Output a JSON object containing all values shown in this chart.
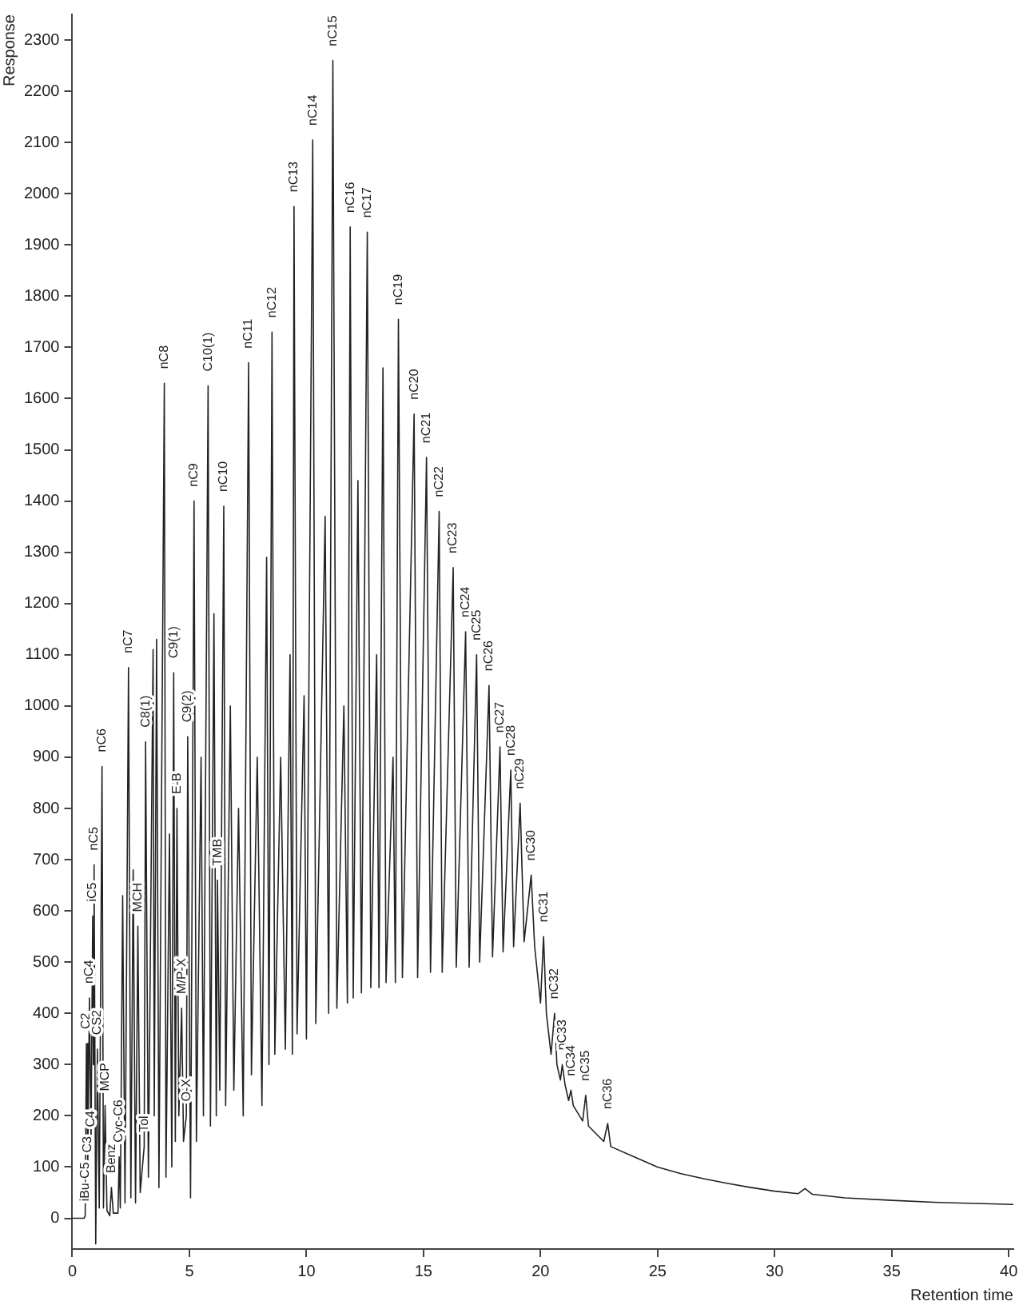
{
  "chart_data": {
    "type": "line",
    "xlabel": "Retention time",
    "ylabel": "Response",
    "color": "#222222",
    "marker": "none",
    "grid": false,
    "xlim": [
      0,
      40.2
    ],
    "ylim": [
      -60,
      2350
    ],
    "xticks": [
      0,
      5,
      10,
      15,
      20,
      25,
      30,
      35,
      40
    ],
    "yticks": [
      0,
      100,
      200,
      300,
      400,
      500,
      600,
      700,
      800,
      900,
      1000,
      1100,
      1200,
      1300,
      1400,
      1500,
      1600,
      1700,
      1800,
      1900,
      2000,
      2100,
      2200,
      2300
    ],
    "x": [
      0,
      0.5,
      0.55,
      0.6,
      0.66,
      0.73,
      0.8,
      0.87,
      0.9,
      0.93,
      1.0,
      1.07,
      1.15,
      1.27,
      1.33,
      1.4,
      1.48,
      1.6,
      1.67,
      1.75,
      1.95,
      2.0,
      2.05,
      2.15,
      2.25,
      2.4,
      2.5,
      2.6,
      2.7,
      2.8,
      2.9,
      3.07,
      3.13,
      3.25,
      3.45,
      3.5,
      3.6,
      3.7,
      3.93,
      4.0,
      4.15,
      4.25,
      4.33,
      4.4,
      4.47,
      4.55,
      4.67,
      4.75,
      4.87,
      4.93,
      5.05,
      5.2,
      5.3,
      5.5,
      5.6,
      5.8,
      5.9,
      6.05,
      6.15,
      6.2,
      6.3,
      6.47,
      6.55,
      6.75,
      6.9,
      7.1,
      7.3,
      7.53,
      7.65,
      7.9,
      8.1,
      8.3,
      8.4,
      8.53,
      8.65,
      8.9,
      9.1,
      9.3,
      9.4,
      9.47,
      9.6,
      9.9,
      10.0,
      10.27,
      10.4,
      10.8,
      10.95,
      11.13,
      11.3,
      11.6,
      11.75,
      11.87,
      12.0,
      12.2,
      12.35,
      12.6,
      12.75,
      13.0,
      13.1,
      13.27,
      13.4,
      13.7,
      13.8,
      13.93,
      14.1,
      14.6,
      14.75,
      15.13,
      15.3,
      15.67,
      15.8,
      16.27,
      16.4,
      16.8,
      16.95,
      17.27,
      17.4,
      17.8,
      17.95,
      18.27,
      18.4,
      18.73,
      18.85,
      19.13,
      19.3,
      19.6,
      19.75,
      20.0,
      20.13,
      20.25,
      20.45,
      20.6,
      20.7,
      20.85,
      20.93,
      21.05,
      21.2,
      21.3,
      21.4,
      21.8,
      21.93,
      22.05,
      22.7,
      22.87,
      23.0,
      24,
      25,
      26,
      27,
      28,
      29,
      30,
      31,
      31.3,
      31.6,
      33,
      35,
      37,
      40.2
    ],
    "values": [
      0,
      0,
      5,
      341,
      100,
      430,
      150,
      590,
      300,
      690,
      -50,
      330,
      20,
      882,
      20,
      220,
      15,
      5,
      60,
      10,
      10,
      120,
      20,
      630,
      30,
      1075,
      40,
      680,
      30,
      570,
      50,
      140,
      930,
      80,
      1110,
      200,
      1130,
      60,
      1630,
      80,
      750,
      100,
      1065,
      150,
      800,
      200,
      410,
      150,
      200,
      940,
      40,
      1400,
      150,
      900,
      200,
      1625,
      180,
      1180,
      200,
      660,
      250,
      1390,
      220,
      1000,
      250,
      800,
      200,
      1670,
      280,
      900,
      220,
      1290,
      300,
      1730,
      320,
      900,
      330,
      1100,
      320,
      1975,
      360,
      1020,
      350,
      2105,
      380,
      1370,
      400,
      2260,
      410,
      1000,
      420,
      1935,
      430,
      1440,
      440,
      1925,
      450,
      1100,
      450,
      1660,
      460,
      900,
      460,
      1755,
      470,
      1570,
      470,
      1485,
      480,
      1380,
      480,
      1270,
      490,
      1145,
      490,
      1100,
      500,
      1040,
      510,
      920,
      520,
      875,
      530,
      810,
      540,
      670,
      530,
      420,
      550,
      400,
      320,
      400,
      300,
      270,
      300,
      260,
      230,
      250,
      220,
      190,
      240,
      180,
      150,
      185,
      140,
      120,
      100,
      87,
      77,
      68,
      60,
      53,
      48,
      58,
      47,
      40,
      35,
      31,
      27
    ],
    "annotations": [
      {
        "text": "C2",
        "x": 0.6,
        "y": 341
      },
      {
        "text": "nC4",
        "x": 0.73,
        "y": 430
      },
      {
        "text": "iC5",
        "x": 0.87,
        "y": 590
      },
      {
        "text": "nC5",
        "x": 0.93,
        "y": 690
      },
      {
        "text": "iBu-C5",
        "x": 0.55,
        "y": 5
      },
      {
        "text": "C3",
        "x": 0.66,
        "y": 100
      },
      {
        "text": "C4",
        "x": 0.8,
        "y": 150
      },
      {
        "text": "CS2",
        "x": 1.07,
        "y": 330
      },
      {
        "text": "nC6",
        "x": 1.27,
        "y": 882
      },
      {
        "text": "MCP",
        "x": 1.4,
        "y": 220
      },
      {
        "text": "Benz",
        "x": 1.67,
        "y": 60
      },
      {
        "text": "Cyc-C6",
        "x": 2.0,
        "y": 120
      },
      {
        "text": "nC7",
        "x": 2.4,
        "y": 1075
      },
      {
        "text": "MCH",
        "x": 2.8,
        "y": 570
      },
      {
        "text": "Tol",
        "x": 3.07,
        "y": 140
      },
      {
        "text": "C8(1)",
        "x": 3.13,
        "y": 930
      },
      {
        "text": "nC8",
        "x": 3.93,
        "y": 1630
      },
      {
        "text": "C9(1)",
        "x": 4.33,
        "y": 1065
      },
      {
        "text": "E-B",
        "x": 4.47,
        "y": 800
      },
      {
        "text": "M/P-X",
        "x": 4.67,
        "y": 410
      },
      {
        "text": "O-X",
        "x": 4.87,
        "y": 200
      },
      {
        "text": "C9(2)",
        "x": 4.93,
        "y": 940
      },
      {
        "text": "nC9",
        "x": 5.2,
        "y": 1400
      },
      {
        "text": "C10(1)",
        "x": 5.8,
        "y": 1625
      },
      {
        "text": "TMB",
        "x": 6.2,
        "y": 660
      },
      {
        "text": "nC10",
        "x": 6.47,
        "y": 1390
      },
      {
        "text": "nC11",
        "x": 7.53,
        "y": 1670
      },
      {
        "text": "nC12",
        "x": 8.53,
        "y": 1730
      },
      {
        "text": "nC13",
        "x": 9.47,
        "y": 1975
      },
      {
        "text": "nC14",
        "x": 10.27,
        "y": 2105
      },
      {
        "text": "nC15",
        "x": 11.13,
        "y": 2260
      },
      {
        "text": "nC16",
        "x": 11.87,
        "y": 1935
      },
      {
        "text": "nC17",
        "x": 12.6,
        "y": 1925
      },
      {
        "text": "nC19",
        "x": 13.93,
        "y": 1755
      },
      {
        "text": "nC20",
        "x": 14.6,
        "y": 1570
      },
      {
        "text": "nC21",
        "x": 15.13,
        "y": 1485
      },
      {
        "text": "nC22",
        "x": 15.67,
        "y": 1380
      },
      {
        "text": "nC23",
        "x": 16.27,
        "y": 1270
      },
      {
        "text": "nC24",
        "x": 16.8,
        "y": 1145
      },
      {
        "text": "nC25",
        "x": 17.27,
        "y": 1100
      },
      {
        "text": "nC26",
        "x": 17.8,
        "y": 1040
      },
      {
        "text": "nC27",
        "x": 18.27,
        "y": 920
      },
      {
        "text": "nC28",
        "x": 18.73,
        "y": 875
      },
      {
        "text": "nC29",
        "x": 19.13,
        "y": 810
      },
      {
        "text": "nC30",
        "x": 19.6,
        "y": 670
      },
      {
        "text": "nC31",
        "x": 20.13,
        "y": 550
      },
      {
        "text": "nC32",
        "x": 20.6,
        "y": 400
      },
      {
        "text": "nC33",
        "x": 20.93,
        "y": 300
      },
      {
        "text": "nC34",
        "x": 21.3,
        "y": 250
      },
      {
        "text": "nC35",
        "x": 21.93,
        "y": 240
      },
      {
        "text": "nC36",
        "x": 22.87,
        "y": 185
      }
    ]
  }
}
